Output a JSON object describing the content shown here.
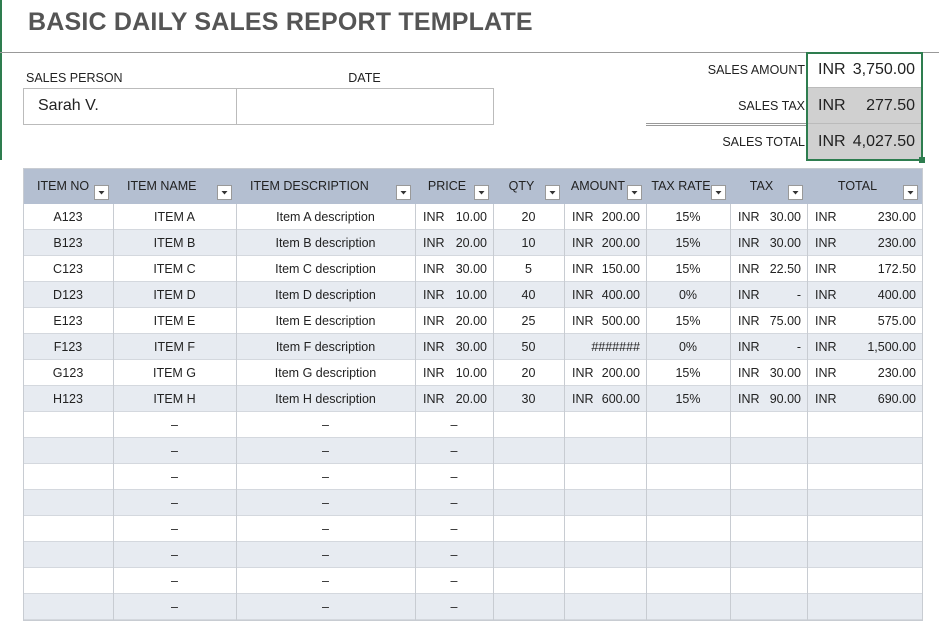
{
  "header": {
    "title": "BASIC DAILY SALES REPORT TEMPLATE"
  },
  "info": {
    "sales_person_label": "SALES PERSON",
    "sales_person": "Sarah V.",
    "date_label": "DATE"
  },
  "summary": [
    {
      "label": "SALES AMOUNT",
      "currency": "INR",
      "value": "3,750.00"
    },
    {
      "label": "SALES TAX",
      "currency": "INR",
      "value": "277.50"
    },
    {
      "label": "SALES TOTAL",
      "currency": "INR",
      "value": "4,027.50"
    }
  ],
  "table": {
    "columns": [
      "ITEM NO",
      "ITEM NAME",
      "ITEM DESCRIPTION",
      "PRICE",
      "QTY",
      "AMOUNT",
      "TAX RATE",
      "TAX",
      "TOTAL"
    ],
    "rows": [
      [
        "A123",
        "ITEM A",
        "Item A description",
        {
          "cur": "INR",
          "amt": "10.00"
        },
        "20",
        {
          "cur": "INR",
          "amt": "200.00"
        },
        "15%",
        {
          "cur": "INR",
          "amt": "30.00"
        },
        {
          "cur": "INR",
          "amt": "230.00"
        }
      ],
      [
        "B123",
        "ITEM B",
        "Item B description",
        {
          "cur": "INR",
          "amt": "20.00"
        },
        "10",
        {
          "cur": "INR",
          "amt": "200.00"
        },
        "15%",
        {
          "cur": "INR",
          "amt": "30.00"
        },
        {
          "cur": "INR",
          "amt": "230.00"
        }
      ],
      [
        "C123",
        "ITEM C",
        "Item C description",
        {
          "cur": "INR",
          "amt": "30.00"
        },
        "5",
        {
          "cur": "INR",
          "amt": "150.00"
        },
        "15%",
        {
          "cur": "INR",
          "amt": "22.50"
        },
        {
          "cur": "INR",
          "amt": "172.50"
        }
      ],
      [
        "D123",
        "ITEM D",
        "Item D description",
        {
          "cur": "INR",
          "amt": "10.00"
        },
        "40",
        {
          "cur": "INR",
          "amt": "400.00"
        },
        "0%",
        {
          "cur": "INR",
          "amt": "-"
        },
        {
          "cur": "INR",
          "amt": "400.00"
        }
      ],
      [
        "E123",
        "ITEM E",
        "Item E description",
        {
          "cur": "INR",
          "amt": "20.00"
        },
        "25",
        {
          "cur": "INR",
          "amt": "500.00"
        },
        "15%",
        {
          "cur": "INR",
          "amt": "75.00"
        },
        {
          "cur": "INR",
          "amt": "575.00"
        }
      ],
      [
        "F123",
        "ITEM F",
        "Item F description",
        {
          "cur": "INR",
          "amt": "30.00"
        },
        "50",
        "#######",
        "0%",
        {
          "cur": "INR",
          "amt": "-"
        },
        {
          "cur": "INR",
          "amt": "1,500.00"
        }
      ],
      [
        "G123",
        "ITEM G",
        "Item G description",
        {
          "cur": "INR",
          "amt": "10.00"
        },
        "20",
        {
          "cur": "INR",
          "amt": "200.00"
        },
        "15%",
        {
          "cur": "INR",
          "amt": "30.00"
        },
        {
          "cur": "INR",
          "amt": "230.00"
        }
      ],
      [
        "H123",
        "ITEM H",
        "Item H description",
        {
          "cur": "INR",
          "amt": "20.00"
        },
        "30",
        {
          "cur": "INR",
          "amt": "600.00"
        },
        "15%",
        {
          "cur": "INR",
          "amt": "90.00"
        },
        {
          "cur": "INR",
          "amt": "690.00"
        }
      ],
      [
        null,
        "–",
        "–",
        "–",
        null,
        null,
        null,
        null,
        null
      ],
      [
        null,
        "–",
        "–",
        "–",
        null,
        null,
        null,
        null,
        null
      ],
      [
        null,
        "–",
        "–",
        "–",
        null,
        null,
        null,
        null,
        null
      ],
      [
        null,
        "–",
        "–",
        "–",
        null,
        null,
        null,
        null,
        null
      ],
      [
        null,
        "–",
        "–",
        "–",
        null,
        null,
        null,
        null,
        null
      ],
      [
        null,
        "–",
        "–",
        "–",
        null,
        null,
        null,
        null,
        null
      ],
      [
        null,
        "–",
        "–",
        "–",
        null,
        null,
        null,
        null,
        null
      ],
      [
        null,
        "–",
        "–",
        "–",
        null,
        null,
        null,
        null,
        null
      ]
    ]
  }
}
